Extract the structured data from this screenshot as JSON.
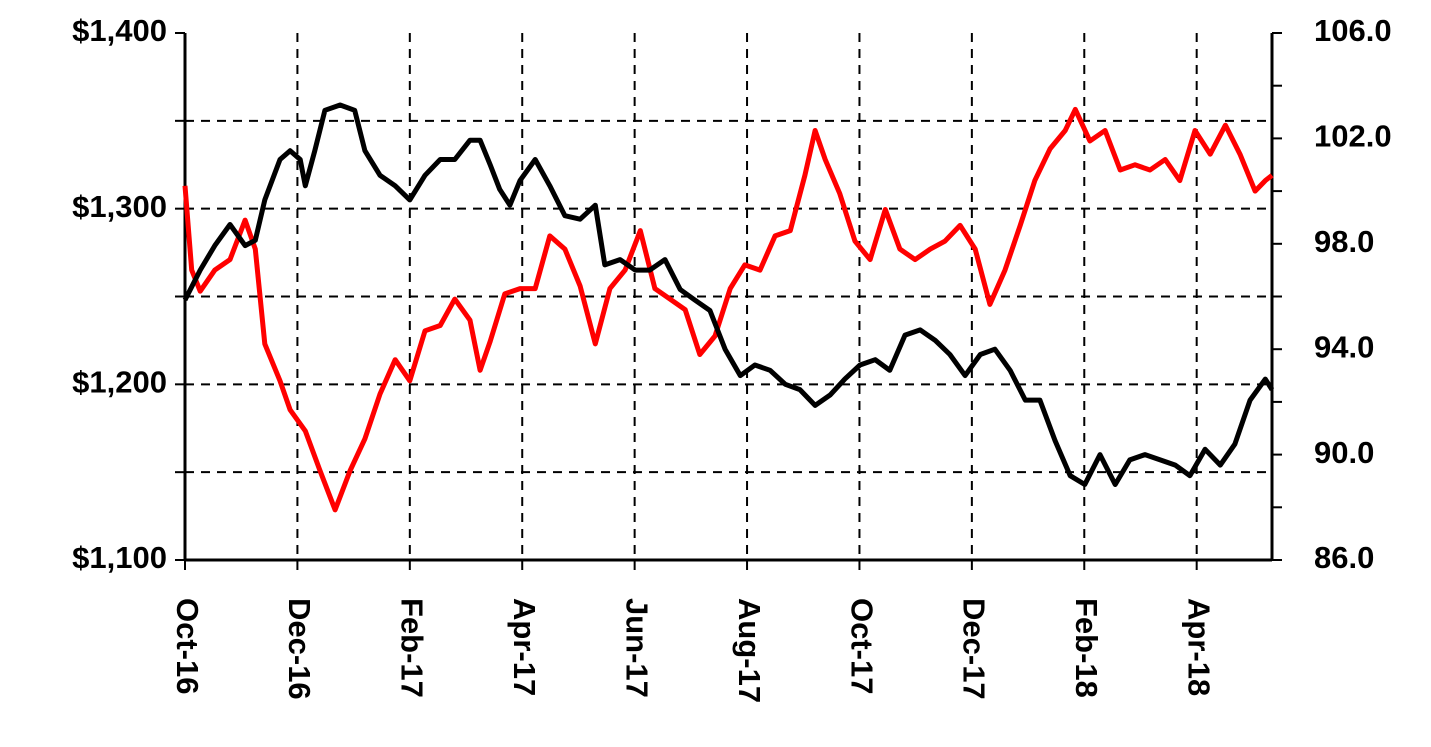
{
  "chart_data": {
    "type": "line",
    "xlim": [
      0,
      19.34
    ],
    "xticks": [
      {
        "value": 0,
        "label": "Oct-16"
      },
      {
        "value": 2,
        "label": "Dec-16"
      },
      {
        "value": 4,
        "label": "Feb-17"
      },
      {
        "value": 6,
        "label": "Apr-17"
      },
      {
        "value": 8,
        "label": "Jun-17"
      },
      {
        "value": 10,
        "label": "Aug-17"
      },
      {
        "value": 12,
        "label": "Oct-17"
      },
      {
        "value": 14,
        "label": "Dec-17"
      },
      {
        "value": 16,
        "label": "Feb-18"
      },
      {
        "value": 18,
        "label": "Apr-18"
      }
    ],
    "ylim": [
      1100,
      1400
    ],
    "yticks": [
      {
        "value": 1100,
        "label": "$1,100"
      },
      {
        "value": 1200,
        "label": "$1,200"
      },
      {
        "value": 1300,
        "label": "$1,300"
      },
      {
        "value": 1400,
        "label": "$1,400"
      }
    ],
    "minor_yticks": [
      1150,
      1250,
      1350
    ],
    "y2lim": [
      86,
      106
    ],
    "y2ticks": [
      {
        "value": 86,
        "label": "86.0"
      },
      {
        "value": 90,
        "label": "90.0"
      },
      {
        "value": 94,
        "label": "94.0"
      },
      {
        "value": 98,
        "label": "98.0"
      },
      {
        "value": 102,
        "label": "102.0"
      },
      {
        "value": 106,
        "label": "106.0"
      }
    ],
    "minor_y2ticks": [
      88,
      92,
      96,
      100,
      104
    ],
    "grid": true,
    "series": [
      {
        "color": "#000000",
        "x": [
          0,
          0.27,
          0.53,
          0.8,
          1.07,
          1.25,
          1.42,
          1.69,
          1.87,
          2.05,
          2.14,
          2.31,
          2.49,
          2.76,
          3.02,
          3.2,
          3.47,
          3.74,
          4.0,
          4.27,
          4.54,
          4.8,
          5.07,
          5.25,
          5.43,
          5.6,
          5.78,
          5.96,
          6.23,
          6.49,
          6.76,
          7.03,
          7.3,
          7.47,
          7.74,
          8.01,
          8.27,
          8.54,
          8.81,
          9.07,
          9.34,
          9.61,
          9.88,
          10.14,
          10.41,
          10.68,
          10.94,
          11.21,
          11.48,
          11.74,
          12.01,
          12.28,
          12.54,
          12.81,
          13.08,
          13.35,
          13.61,
          13.88,
          14.15,
          14.41,
          14.68,
          14.95,
          15.21,
          15.48,
          15.75,
          16.01,
          16.28,
          16.55,
          16.81,
          17.08,
          17.35,
          17.62,
          17.88,
          18.15,
          18.42,
          18.68,
          18.95,
          19.22,
          19.34
        ],
        "values": [
          1248,
          1265,
          1279,
          1291,
          1279,
          1282,
          1305,
          1328,
          1333,
          1328,
          1313,
          1333,
          1356,
          1359,
          1356,
          1333,
          1319,
          1313,
          1305,
          1319,
          1328,
          1328,
          1339,
          1339,
          1325,
          1311,
          1302,
          1316,
          1328,
          1313,
          1296,
          1294,
          1302,
          1268,
          1271,
          1265,
          1265,
          1271,
          1254,
          1248,
          1242,
          1220,
          1205,
          1211,
          1208,
          1200,
          1197,
          1188,
          1194,
          1203,
          1211,
          1214,
          1208,
          1228,
          1231,
          1225,
          1217,
          1205,
          1217,
          1220,
          1208,
          1191,
          1191,
          1168,
          1148,
          1143,
          1160,
          1143,
          1157,
          1160,
          1157,
          1154,
          1148,
          1163,
          1154,
          1166,
          1191,
          1203,
          1197
        ]
      },
      {
        "color": "#ff0000",
        "axis": "y2",
        "x": [
          0,
          0.12,
          0.27,
          0.53,
          0.8,
          1.07,
          1.25,
          1.42,
          1.69,
          1.87,
          2.14,
          2.4,
          2.67,
          2.94,
          3.2,
          3.47,
          3.74,
          4.0,
          4.27,
          4.54,
          4.8,
          5.07,
          5.25,
          5.43,
          5.69,
          5.96,
          6.23,
          6.49,
          6.76,
          7.03,
          7.3,
          7.56,
          7.83,
          8.1,
          8.36,
          8.63,
          8.9,
          9.16,
          9.43,
          9.7,
          9.96,
          10.23,
          10.5,
          10.77,
          11.03,
          11.21,
          11.39,
          11.65,
          11.92,
          12.19,
          12.46,
          12.72,
          12.99,
          13.26,
          13.52,
          13.79,
          14.06,
          14.32,
          14.59,
          14.86,
          15.12,
          15.39,
          15.66,
          15.84,
          16.1,
          16.37,
          16.64,
          16.9,
          17.17,
          17.44,
          17.7,
          17.97,
          18.24,
          18.51,
          18.77,
          19.04,
          19.22,
          19.34
        ],
        "values": [
          100.2,
          97.0,
          96.2,
          97.0,
          97.4,
          98.9,
          97.8,
          94.2,
          92.8,
          91.7,
          90.9,
          89.4,
          87.9,
          89.4,
          90.6,
          92.3,
          93.6,
          92.8,
          94.7,
          94.9,
          95.9,
          95.1,
          93.2,
          94.3,
          96.1,
          96.3,
          96.3,
          98.3,
          97.8,
          96.4,
          94.2,
          96.3,
          97.0,
          98.5,
          96.3,
          95.9,
          95.5,
          93.8,
          94.5,
          96.3,
          97.2,
          97.0,
          98.3,
          98.5,
          100.6,
          102.3,
          101.2,
          99.9,
          98.1,
          97.4,
          99.3,
          97.8,
          97.4,
          97.8,
          98.1,
          98.7,
          97.8,
          95.7,
          97.0,
          98.7,
          100.4,
          101.6,
          102.3,
          103.1,
          101.9,
          102.3,
          100.8,
          101.0,
          100.8,
          101.2,
          100.4,
          102.3,
          101.4,
          102.5,
          101.4,
          100.0,
          100.4,
          100.6
        ]
      }
    ]
  }
}
